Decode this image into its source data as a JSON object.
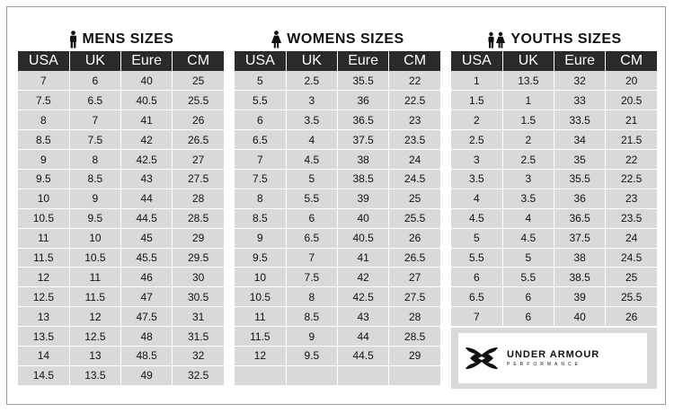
{
  "tables": {
    "mens": {
      "title": "MENS SIZES",
      "icon": "man-icon",
      "columns": [
        "USA",
        "UK",
        "Eure",
        "CM"
      ],
      "rows": [
        [
          "7",
          "6",
          "40",
          "25"
        ],
        [
          "7.5",
          "6.5",
          "40.5",
          "25.5"
        ],
        [
          "8",
          "7",
          "41",
          "26"
        ],
        [
          "8.5",
          "7.5",
          "42",
          "26.5"
        ],
        [
          "9",
          "8",
          "42.5",
          "27"
        ],
        [
          "9.5",
          "8.5",
          "43",
          "27.5"
        ],
        [
          "10",
          "9",
          "44",
          "28"
        ],
        [
          "10.5",
          "9.5",
          "44.5",
          "28.5"
        ],
        [
          "11",
          "10",
          "45",
          "29"
        ],
        [
          "11.5",
          "10.5",
          "45.5",
          "29.5"
        ],
        [
          "12",
          "11",
          "46",
          "30"
        ],
        [
          "12.5",
          "11.5",
          "47",
          "30.5"
        ],
        [
          "13",
          "12",
          "47.5",
          "31"
        ],
        [
          "13.5",
          "12.5",
          "48",
          "31.5"
        ],
        [
          "14",
          "13",
          "48.5",
          "32"
        ],
        [
          "14.5",
          "13.5",
          "49",
          "32.5"
        ]
      ]
    },
    "womens": {
      "title": "WOMENS SIZES",
      "icon": "woman-icon",
      "columns": [
        "USA",
        "UK",
        "Eure",
        "CM"
      ],
      "rows": [
        [
          "5",
          "2.5",
          "35.5",
          "22"
        ],
        [
          "5.5",
          "3",
          "36",
          "22.5"
        ],
        [
          "6",
          "3.5",
          "36.5",
          "23"
        ],
        [
          "6.5",
          "4",
          "37.5",
          "23.5"
        ],
        [
          "7",
          "4.5",
          "38",
          "24"
        ],
        [
          "7.5",
          "5",
          "38.5",
          "24.5"
        ],
        [
          "8",
          "5.5",
          "39",
          "25"
        ],
        [
          "8.5",
          "6",
          "40",
          "25.5"
        ],
        [
          "9",
          "6.5",
          "40.5",
          "26"
        ],
        [
          "9.5",
          "7",
          "41",
          "26.5"
        ],
        [
          "10",
          "7.5",
          "42",
          "27"
        ],
        [
          "10.5",
          "8",
          "42.5",
          "27.5"
        ],
        [
          "11",
          "8.5",
          "43",
          "28"
        ],
        [
          "11.5",
          "9",
          "44",
          "28.5"
        ],
        [
          "12",
          "9.5",
          "44.5",
          "29"
        ],
        [
          "",
          "",
          "",
          ""
        ]
      ]
    },
    "youths": {
      "title": "YOUTHS SIZES",
      "icon": "children-icon",
      "columns": [
        "USA",
        "UK",
        "Eure",
        "CM"
      ],
      "rows": [
        [
          "1",
          "13.5",
          "32",
          "20"
        ],
        [
          "1.5",
          "1",
          "33",
          "20.5"
        ],
        [
          "2",
          "1.5",
          "33.5",
          "21"
        ],
        [
          "2.5",
          "2",
          "34",
          "21.5"
        ],
        [
          "3",
          "2.5",
          "35",
          "22"
        ],
        [
          "3.5",
          "3",
          "35.5",
          "22.5"
        ],
        [
          "4",
          "3.5",
          "36",
          "23"
        ],
        [
          "4.5",
          "4",
          "36.5",
          "23.5"
        ],
        [
          "5",
          "4.5",
          "37.5",
          "24"
        ],
        [
          "5.5",
          "5",
          "38",
          "24.5"
        ],
        [
          "6",
          "5.5",
          "38.5",
          "25"
        ],
        [
          "6.5",
          "6",
          "39",
          "25.5"
        ],
        [
          "7",
          "6",
          "40",
          "26"
        ]
      ]
    }
  },
  "brand": {
    "name": "UNDER ARMOUR",
    "tagline": "PERFORMANCE",
    "icon": "under-armour-logo-icon"
  },
  "colors": {
    "header_bg": "#2a2a2a",
    "cell_bg": "#d9d9d9",
    "text": "#111111"
  }
}
